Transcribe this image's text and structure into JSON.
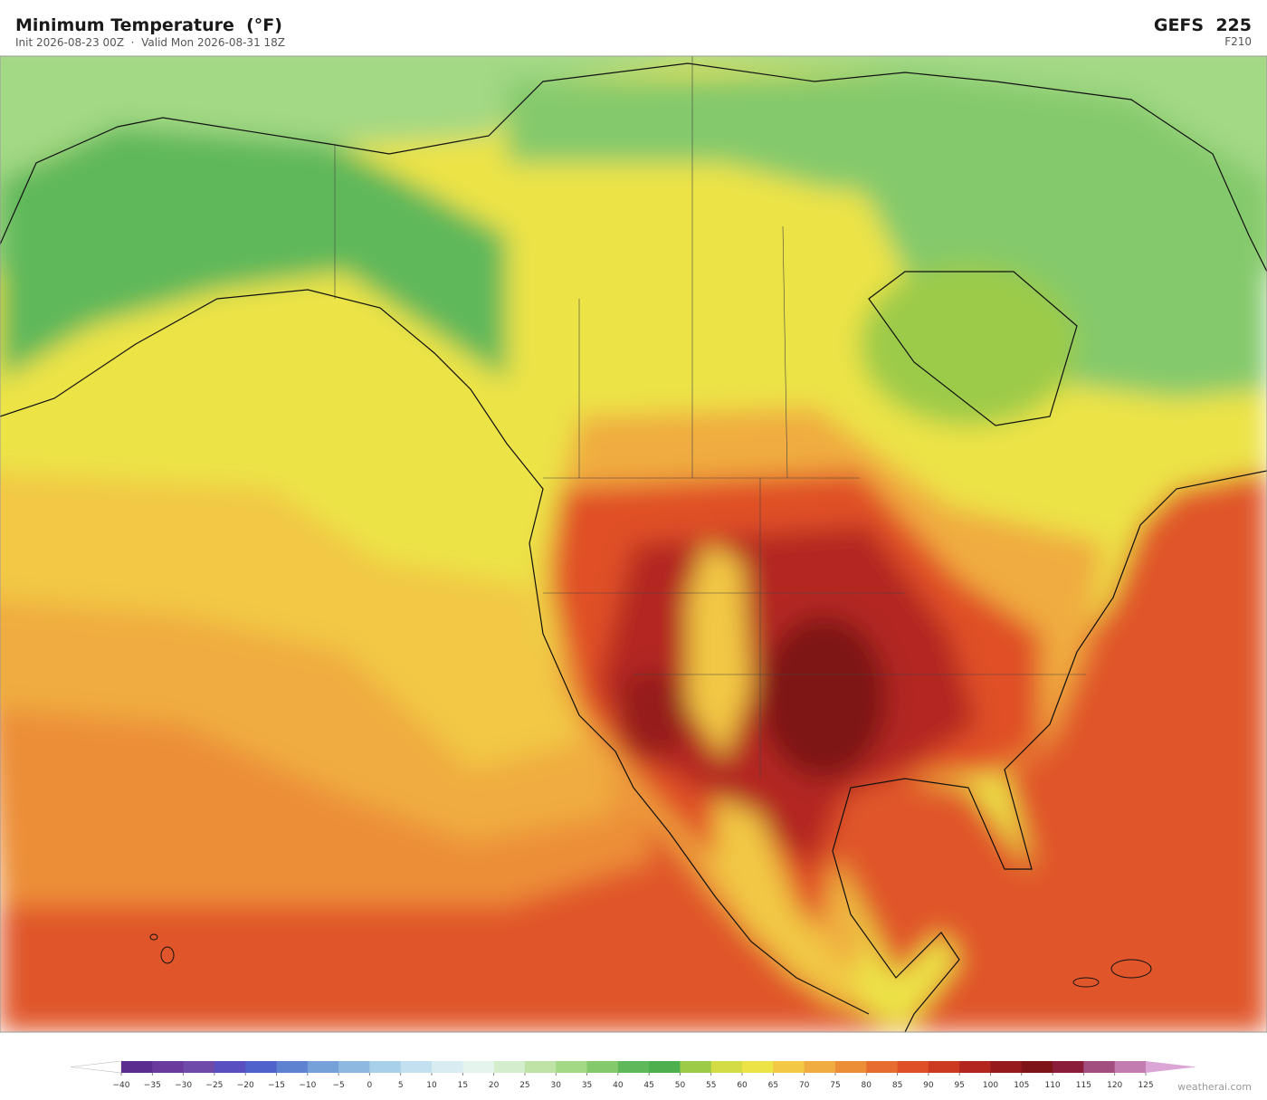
{
  "header": {
    "title": "Minimum Temperature  (°F)",
    "subtitle": "Init 2026-08-23 00Z  ·  Valid Mon 2026-08-31 18Z",
    "model": "GEFS  225",
    "forecast_hour": "F210"
  },
  "colorbar": {
    "ticks": [
      {
        "value": -40,
        "label": "−40"
      },
      {
        "value": -35,
        "label": "−35"
      },
      {
        "value": -30,
        "label": "−30"
      },
      {
        "value": -25,
        "label": "−25"
      },
      {
        "value": -20,
        "label": "−20"
      },
      {
        "value": -15,
        "label": "−15"
      },
      {
        "value": -10,
        "label": "−10"
      },
      {
        "value": -5,
        "label": "−5"
      },
      0,
      5,
      10,
      15,
      20,
      25,
      30,
      35,
      40,
      45,
      50,
      55,
      60,
      65,
      70,
      75,
      80,
      85,
      90,
      95,
      100,
      105,
      110,
      115,
      120,
      125
    ],
    "colors": [
      "#5b2d8e",
      "#6a3a9c",
      "#6f4aa8",
      "#5a4fc0",
      "#4f62cc",
      "#5f82d0",
      "#76a0d8",
      "#8fb8e0",
      "#a9d0ea",
      "#c2e0ef",
      "#d8ecf2",
      "#e6f4ee",
      "#d4edcc",
      "#bfe3a6",
      "#a3d884",
      "#84c96c",
      "#5fb85a",
      "#4daf4e",
      "#9ccb48",
      "#d4dc45",
      "#ece346",
      "#f2c844",
      "#f0ac40",
      "#ec8e38",
      "#e66c30",
      "#e05028",
      "#cc3a22",
      "#b32620",
      "#961a1c",
      "#7e1318",
      "#8a1e3a",
      "#a24e7e",
      "#c27cb0"
    ],
    "under_color": "#ffffff",
    "over_color": "#dba6d6"
  },
  "footer": {
    "credit": "weatherai.com"
  }
}
